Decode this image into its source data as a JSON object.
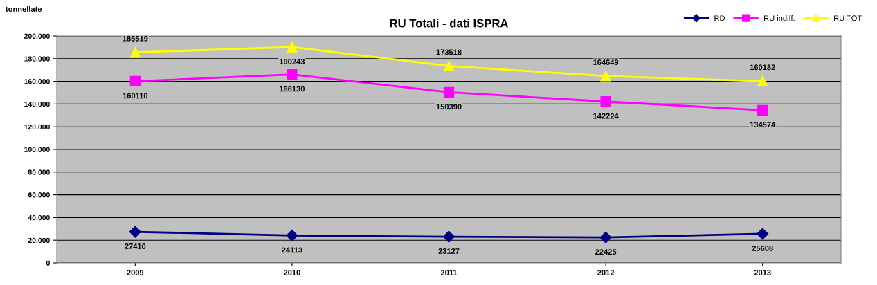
{
  "chart_data": {
    "type": "line",
    "title": "RU Totali - dati ISPRA",
    "ylabel": "tonnellate",
    "categories": [
      "2009",
      "2010",
      "2011",
      "2012",
      "2013"
    ],
    "series": [
      {
        "name": "RD",
        "color": "#000080",
        "marker": "diamond",
        "values": [
          27410,
          24113,
          23127,
          22425,
          25608
        ]
      },
      {
        "name": "RU indiff.",
        "color": "#ff00ff",
        "marker": "square",
        "values": [
          160110,
          166130,
          150390,
          142224,
          134574
        ]
      },
      {
        "name": "RU TOT.",
        "color": "#ffff00",
        "marker": "triangle",
        "values": [
          185519,
          190243,
          173518,
          164649,
          160182
        ]
      }
    ],
    "ylim": [
      0,
      200000
    ],
    "yticks": [
      {
        "value": 0,
        "label": "0"
      },
      {
        "value": 20000,
        "label": "20.000"
      },
      {
        "value": 40000,
        "label": "40.000"
      },
      {
        "value": 60000,
        "label": "60.000"
      },
      {
        "value": 80000,
        "label": "80.000"
      },
      {
        "value": 100000,
        "label": "100.000"
      },
      {
        "value": 120000,
        "label": "120.000"
      },
      {
        "value": 140000,
        "label": "140.000"
      },
      {
        "value": 160000,
        "label": "160.000"
      },
      {
        "value": 180000,
        "label": "180.000"
      },
      {
        "value": 200000,
        "label": "200.000"
      }
    ],
    "grid": "y",
    "legend": "top right",
    "data_labels": true
  }
}
